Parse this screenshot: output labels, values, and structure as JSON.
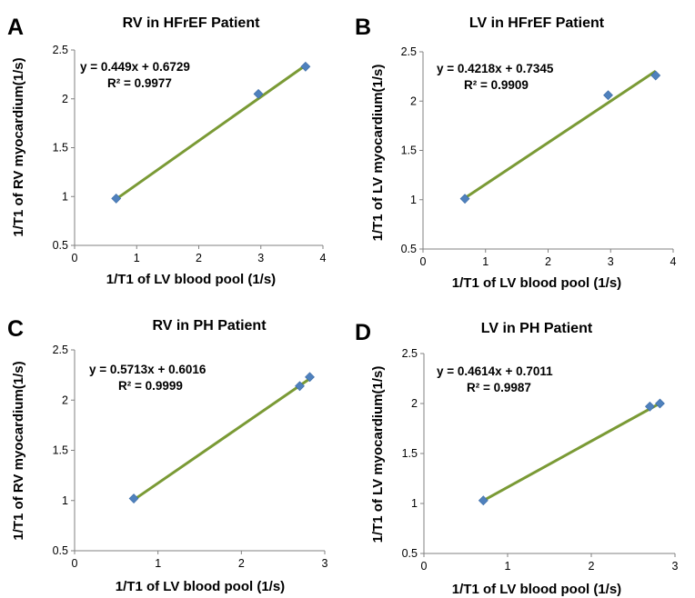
{
  "colors": {
    "points": "#4f81bd",
    "fit_line": "#7a9a35",
    "axis": "#808080"
  },
  "chart_data": [
    {
      "type": "scatter",
      "panel_letter": "A",
      "title": "RV in HFrEF Patient",
      "xlabel": "1/T1 of LV blood pool (1/s)",
      "ylabel": "1/T1 of RV myocardium(1/s)",
      "xlim": [
        0,
        4
      ],
      "ylim": [
        0.5,
        2.5
      ],
      "x_ticks": [
        "0",
        "1",
        "2",
        "3",
        "4"
      ],
      "y_ticks": [
        "0.5",
        "1",
        "1.5",
        "2",
        "2.5"
      ],
      "points": [
        {
          "x": 0.67,
          "y": 0.98
        },
        {
          "x": 2.96,
          "y": 2.05
        },
        {
          "x": 3.72,
          "y": 2.33
        }
      ],
      "fit": {
        "slope": 0.449,
        "intercept": 0.6729,
        "x_range": [
          0.67,
          3.72
        ]
      },
      "equation": "y = 0.449x + 0.6729",
      "r_squared": "R² = 0.9977",
      "grid": false
    },
    {
      "type": "scatter",
      "panel_letter": "B",
      "title": "LV in HFrEF Patient",
      "xlabel": "1/T1 of LV blood pool (1/s)",
      "ylabel": "1/T1 of LV myocardium(1/s)",
      "xlim": [
        0,
        4
      ],
      "ylim": [
        0.5,
        2.5
      ],
      "x_ticks": [
        "0",
        "1",
        "2",
        "3",
        "4"
      ],
      "y_ticks": [
        "0.5",
        "1",
        "1.5",
        "2",
        "2.5"
      ],
      "points": [
        {
          "x": 0.67,
          "y": 1.01
        },
        {
          "x": 2.96,
          "y": 2.06
        },
        {
          "x": 3.72,
          "y": 2.26
        }
      ],
      "fit": {
        "slope": 0.4218,
        "intercept": 0.7345,
        "x_range": [
          0.67,
          3.72
        ]
      },
      "equation": "y = 0.4218x + 0.7345",
      "r_squared": "R² = 0.9909",
      "grid": false
    },
    {
      "type": "scatter",
      "panel_letter": "C",
      "title": "RV in PH Patient",
      "xlabel": "1/T1 of LV blood pool (1/s)",
      "ylabel": "1/T1 of RV myocardium(1/s)",
      "xlim": [
        0,
        3
      ],
      "ylim": [
        0.5,
        2.5
      ],
      "x_ticks": [
        "0",
        "1",
        "2",
        "3"
      ],
      "y_ticks": [
        "0.5",
        "1",
        "1.5",
        "2",
        "2.5"
      ],
      "points": [
        {
          "x": 0.71,
          "y": 1.02
        },
        {
          "x": 2.7,
          "y": 2.14
        },
        {
          "x": 2.82,
          "y": 2.23
        }
      ],
      "fit": {
        "slope": 0.5713,
        "intercept": 0.6016,
        "x_range": [
          0.71,
          2.82
        ]
      },
      "equation": "y = 0.5713x + 0.6016",
      "r_squared": "R² = 0.9999",
      "grid": false
    },
    {
      "type": "scatter",
      "panel_letter": "D",
      "title": "LV in PH Patient",
      "xlabel": "1/T1 of LV blood pool (1/s)",
      "ylabel": "1/T1 of LV myocardium(1/s)",
      "xlim": [
        0,
        3
      ],
      "ylim": [
        0.5,
        2.5
      ],
      "x_ticks": [
        "0",
        "1",
        "2",
        "3"
      ],
      "y_ticks": [
        "0.5",
        "1",
        "1.5",
        "2",
        "2.5"
      ],
      "points": [
        {
          "x": 0.71,
          "y": 1.03
        },
        {
          "x": 2.7,
          "y": 1.97
        },
        {
          "x": 2.82,
          "y": 2.0
        }
      ],
      "fit": {
        "slope": 0.4614,
        "intercept": 0.7011,
        "x_range": [
          0.71,
          2.82
        ]
      },
      "equation": "y = 0.4614x + 0.7011",
      "r_squared": "R² = 0.9987",
      "grid": false
    }
  ]
}
